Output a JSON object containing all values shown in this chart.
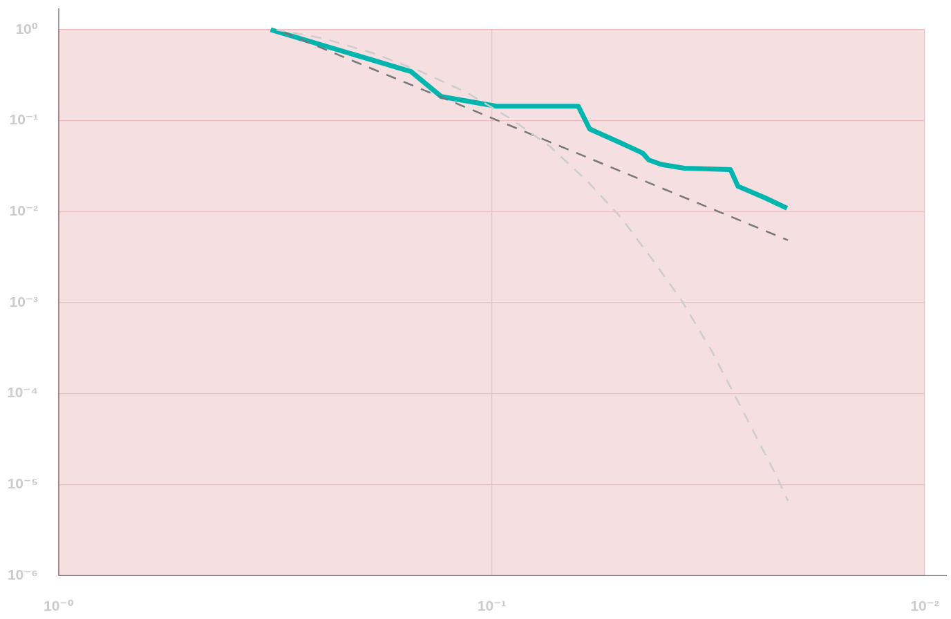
{
  "chart_data": {
    "type": "line",
    "series": [
      {
        "color": "#00b5ad",
        "line_style": "solid",
        "x": [
          0.324,
          0.1535,
          0.1308,
          0.0975,
          0.0631,
          0.0594,
          0.0504,
          0.0448,
          0.0434,
          0.0406,
          0.0359,
          0.0281,
          0.027,
          0.0234,
          0.0208
        ],
        "values": [
          1.0,
          0.346,
          0.184,
          0.144,
          0.144,
          0.081,
          0.057,
          0.044,
          0.037,
          0.033,
          0.03,
          0.029,
          0.019,
          0.0142,
          0.0109
        ]
      },
      {
        "color": "#777777",
        "line_style": "dashed",
        "x": [
          0.313,
          0.1,
          0.0207
        ],
        "values": [
          1.0,
          0.107,
          0.00485
        ]
      },
      {
        "color": "#cccccc",
        "line_style": "dashed",
        "x": [
          0.314,
          0.2444,
          0.1878,
          0.1462,
          0.1136,
          0.0901,
          0.0732,
          0.0599,
          0.0504,
          0.0429,
          0.0365,
          0.0311,
          0.0265,
          0.022,
          0.0207
        ],
        "values": [
          1.0,
          0.801,
          0.552,
          0.35,
          0.201,
          0.104,
          0.0516,
          0.0212,
          0.0087,
          0.00314,
          0.00107,
          0.000298,
          6.9e-05,
          1.24e-05,
          6.6e-06
        ]
      }
    ],
    "xlim": [
      1,
      0.01
    ],
    "ylim": [
      1e-06,
      1
    ],
    "xticks": [
      {
        "value": 1,
        "label": "10⁻⁰"
      },
      {
        "value": 0.1,
        "label": "10⁻¹"
      },
      {
        "value": 0.01,
        "label": "10⁻²"
      }
    ],
    "yticks": [
      {
        "value": 1,
        "label": "10⁰"
      },
      {
        "value": 0.1,
        "label": "10⁻¹"
      },
      {
        "value": 0.01,
        "label": "10⁻²"
      },
      {
        "value": 0.001,
        "label": "10⁻³"
      },
      {
        "value": 0.0001,
        "label": "10⁻⁴"
      },
      {
        "value": 1e-05,
        "label": "10⁻⁵"
      },
      {
        "value": 1e-06,
        "label": "10⁻⁶"
      }
    ],
    "log": "xy",
    "grid": true,
    "legend": false,
    "marker": "none"
  }
}
